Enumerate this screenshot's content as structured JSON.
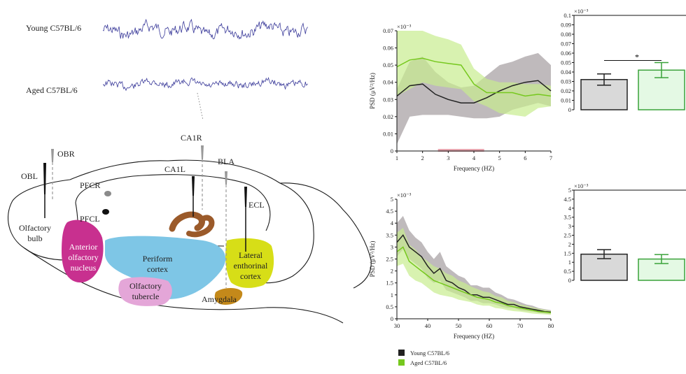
{
  "left_panel": {
    "young_label": "Young  C57BL/6",
    "aged_label": "Aged C57BL/6",
    "electrodes": {
      "obr": "OBR",
      "obl": "OBL",
      "pfcr": "PFCR",
      "pfcl": "PFCL",
      "ca1r": "CA1R",
      "ca1l": "CA1L",
      "bla": "BLA",
      "ecl": "ECL"
    },
    "regions": {
      "olfactory_bulb": [
        "Olfactory",
        "bulb"
      ],
      "anterior_olfactory": [
        "Anterior",
        "olfactory",
        "nucleus"
      ],
      "periform": [
        "Periform",
        "cortex"
      ],
      "olfactory_tubercle": [
        "Olfactory",
        "tubercle"
      ],
      "lateral_entorhinal": [
        "Lateral",
        "enthorinal",
        "cortex"
      ],
      "amygdala": "Amygdala"
    },
    "region_colors": {
      "anterior_olfactory": "#c8308f",
      "periform": "#7ec6e6",
      "olfactory_tubercle": "#e4a6d8",
      "lateral_entorhinal": "#d7de17",
      "amygdala": "#c4891a",
      "hippocampus": "#9b5a2a"
    }
  },
  "legend": [
    {
      "label": "Young C57BL/6",
      "color": "#222222"
    },
    {
      "label": "Aged C57BL/6",
      "color": "#76c81e"
    }
  ],
  "chart_data": [
    {
      "type": "line",
      "id": "psd-low",
      "xlabel": "Frequency (HZ)",
      "ylabel": "PSD (μV²/Hz)",
      "multiplier": "×10⁻³",
      "xlim": [
        1,
        7
      ],
      "ylim": [
        0,
        0.07
      ],
      "xticks": [
        "1",
        "2",
        "3",
        "4",
        "5",
        "6",
        "7"
      ],
      "yticks": [
        "0",
        "0.01",
        "0.02",
        "0.03",
        "0.04",
        "0.05",
        "0.06",
        "0.07"
      ],
      "x": [
        1,
        1.5,
        2,
        2.5,
        3,
        3.5,
        4,
        4.5,
        5,
        5.5,
        6,
        6.5,
        7
      ],
      "series": [
        {
          "name": "Young C57BL/6",
          "color": "#222222",
          "band_color": "#b4aeb0",
          "mean": [
            0.032,
            0.038,
            0.039,
            0.033,
            0.03,
            0.028,
            0.028,
            0.031,
            0.035,
            0.038,
            0.04,
            0.041,
            0.035
          ],
          "lower": [
            0.004,
            0.02,
            0.021,
            0.021,
            0.021,
            0.02,
            0.019,
            0.019,
            0.02,
            0.024,
            0.026,
            0.028,
            0.026
          ],
          "upper": [
            0.036,
            0.052,
            0.055,
            0.046,
            0.04,
            0.037,
            0.038,
            0.044,
            0.05,
            0.052,
            0.055,
            0.057,
            0.05
          ]
        },
        {
          "name": "Aged C57BL/6",
          "color": "#76c81e",
          "band_color": "#c8ec8e",
          "mean": [
            0.049,
            0.053,
            0.054,
            0.052,
            0.051,
            0.05,
            0.039,
            0.034,
            0.034,
            0.034,
            0.032,
            0.033,
            0.032
          ],
          "lower": [
            0.032,
            0.036,
            0.04,
            0.038,
            0.037,
            0.036,
            0.029,
            0.026,
            0.022,
            0.021,
            0.02,
            0.025,
            0.026
          ],
          "upper": [
            0.07,
            0.07,
            0.07,
            0.067,
            0.065,
            0.062,
            0.048,
            0.042,
            0.04,
            0.04,
            0.039,
            0.039,
            0.038
          ]
        }
      ],
      "highlight": {
        "x_range": [
          2.6,
          4.4
        ],
        "color": "#e8a6b0"
      }
    },
    {
      "type": "bar",
      "id": "bar-low",
      "multiplier": "×10⁻³",
      "ylim": [
        0,
        0.1
      ],
      "yticks": [
        "0",
        "0.01",
        "0.02",
        "0.03",
        "0.04",
        "0.05",
        "0.06",
        "0.07",
        "0.08",
        "0.09",
        "0.1"
      ],
      "categories": [
        "Young C57BL/6",
        "Aged C57BL/6"
      ],
      "values": [
        0.032,
        0.042
      ],
      "errors": [
        0.006,
        0.008
      ],
      "colors": [
        "#d9d9d9",
        "#e4f9e4"
      ],
      "edge_colors": [
        "#222222",
        "#3aa23a"
      ],
      "significance": "*"
    },
    {
      "type": "line",
      "id": "psd-high",
      "xlabel": "Frequency (HZ)",
      "ylabel": "PSD (μV²/Hz)",
      "multiplier": "×10⁻³",
      "xlim": [
        30,
        80
      ],
      "ylim": [
        0,
        5
      ],
      "xticks": [
        "30",
        "40",
        "50",
        "60",
        "70",
        "80"
      ],
      "yticks": [
        "0",
        "0.5",
        "1",
        "1.5",
        "2",
        "2.5",
        "3",
        "3.5",
        "4",
        "4.5",
        "5"
      ],
      "x": [
        30,
        32,
        34,
        36,
        38,
        40,
        42,
        44,
        46,
        48,
        50,
        52,
        54,
        56,
        58,
        60,
        62,
        64,
        66,
        68,
        70,
        72,
        74,
        76,
        78,
        80
      ],
      "series": [
        {
          "name": "Young C57BL/6",
          "color": "#222222",
          "band_color": "#b4aeb0",
          "mean": [
            3.2,
            3.5,
            3.0,
            2.8,
            2.6,
            2.2,
            1.9,
            2.1,
            1.6,
            1.5,
            1.3,
            1.2,
            1.0,
            1.0,
            0.9,
            0.9,
            0.8,
            0.7,
            0.6,
            0.6,
            0.5,
            0.45,
            0.4,
            0.35,
            0.3,
            0.28
          ],
          "lower": [
            2.6,
            2.9,
            2.5,
            2.3,
            2.1,
            1.7,
            1.5,
            1.6,
            1.2,
            1.1,
            1.0,
            0.9,
            0.75,
            0.75,
            0.65,
            0.65,
            0.6,
            0.5,
            0.45,
            0.45,
            0.35,
            0.32,
            0.3,
            0.25,
            0.22,
            0.2
          ],
          "upper": [
            4.0,
            4.3,
            3.7,
            3.4,
            3.2,
            2.8,
            2.5,
            2.8,
            2.2,
            2.0,
            1.8,
            1.7,
            1.4,
            1.4,
            1.3,
            1.3,
            1.1,
            1.0,
            0.85,
            0.8,
            0.7,
            0.6,
            0.55,
            0.45,
            0.4,
            0.36
          ]
        },
        {
          "name": "Aged C57BL/6",
          "color": "#76c81e",
          "band_color": "#c8ec8e",
          "mean": [
            2.8,
            3.0,
            2.4,
            2.2,
            2.0,
            1.8,
            1.6,
            1.5,
            1.4,
            1.3,
            1.2,
            1.1,
            1.0,
            0.9,
            0.85,
            0.8,
            0.7,
            0.65,
            0.55,
            0.5,
            0.45,
            0.4,
            0.35,
            0.3,
            0.28,
            0.25
          ],
          "lower": [
            2.2,
            2.3,
            1.8,
            1.6,
            1.5,
            1.3,
            1.1,
            1.0,
            0.95,
            0.9,
            0.8,
            0.75,
            0.7,
            0.6,
            0.55,
            0.55,
            0.45,
            0.42,
            0.36,
            0.32,
            0.3,
            0.26,
            0.22,
            0.2,
            0.18,
            0.16
          ],
          "upper": [
            3.6,
            3.8,
            3.1,
            2.9,
            2.6,
            2.4,
            2.2,
            2.1,
            1.9,
            1.8,
            1.6,
            1.5,
            1.35,
            1.25,
            1.15,
            1.1,
            0.95,
            0.9,
            0.75,
            0.7,
            0.6,
            0.55,
            0.48,
            0.42,
            0.38,
            0.34
          ]
        }
      ]
    },
    {
      "type": "bar",
      "id": "bar-high",
      "multiplier": "×10⁻³",
      "ylim": [
        0,
        5
      ],
      "yticks": [
        "0",
        "0.5",
        "1",
        "1.5",
        "2",
        "2.5",
        "3",
        "3.5",
        "4",
        "4.5",
        "5"
      ],
      "categories": [
        "Young C57BL/6",
        "Aged C57BL/6"
      ],
      "values": [
        1.45,
        1.18
      ],
      "errors": [
        0.25,
        0.25
      ],
      "colors": [
        "#d9d9d9",
        "#e4f9e4"
      ],
      "edge_colors": [
        "#222222",
        "#3aa23a"
      ]
    }
  ]
}
